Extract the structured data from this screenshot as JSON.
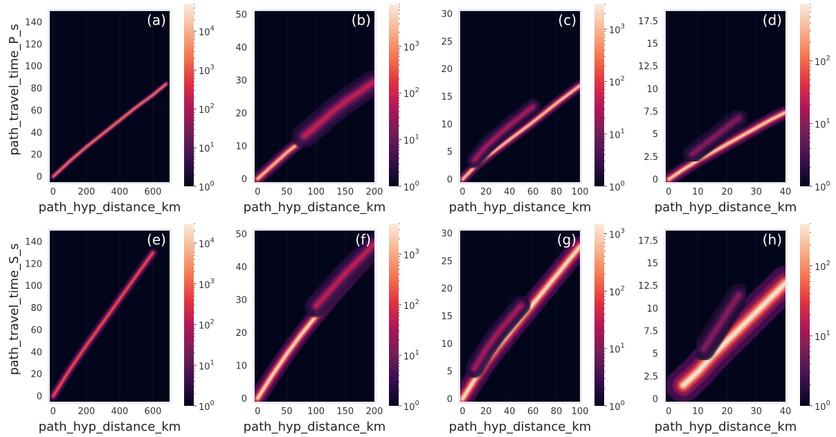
{
  "figure": {
    "colormap": [
      "#03051a",
      "#3b0f4f",
      "#701f57",
      "#ad1759",
      "#e13342",
      "#f37651",
      "#f6b48f",
      "#faebdd"
    ],
    "axes_background": "#eaeaf2",
    "grid": true
  },
  "chart_data": [
    {
      "id": "a",
      "panel_label": "(a)",
      "type": "heatmap",
      "xlabel": "path_hyp_distance_km",
      "ylabel": "path_travel_time_P_s",
      "x_ticks": [
        0,
        200,
        400,
        600
      ],
      "y_ticks": [
        0,
        20,
        40,
        60,
        80,
        100,
        120,
        140
      ],
      "xlim": [
        -20,
        700
      ],
      "ylim": [
        -5,
        150
      ],
      "colorbar": {
        "scale": "log",
        "range": [
          1,
          50000
        ],
        "ticks": [
          {
            "v": 1,
            "label": "10",
            "exp": "0"
          },
          {
            "v": 10,
            "label": "10",
            "exp": "1"
          },
          {
            "v": 100,
            "label": "10",
            "exp": "2"
          },
          {
            "v": 1000,
            "label": "10",
            "exp": "3"
          },
          {
            "v": 10000,
            "label": "10",
            "exp": "4"
          }
        ]
      },
      "bands": [
        {
          "x": [
            0,
            100,
            200,
            300,
            400,
            500,
            600,
            680
          ],
          "y": [
            0,
            14,
            27,
            39,
            51,
            63,
            74,
            84
          ],
          "width": 1.2,
          "intensity": 0.85
        }
      ]
    },
    {
      "id": "b",
      "panel_label": "(b)",
      "type": "heatmap",
      "xlabel": "path_hyp_distance_km",
      "ylabel": "",
      "x_ticks": [
        0,
        50,
        100,
        150,
        200
      ],
      "y_ticks": [
        0,
        10,
        20,
        30,
        40,
        50
      ],
      "xlim": [
        -5,
        200
      ],
      "ylim": [
        -1,
        51
      ],
      "colorbar": {
        "scale": "log",
        "range": [
          1,
          8000
        ],
        "ticks": [
          {
            "v": 1,
            "label": "10",
            "exp": "0"
          },
          {
            "v": 10,
            "label": "10",
            "exp": "1"
          },
          {
            "v": 100,
            "label": "10",
            "exp": "2"
          },
          {
            "v": 1000,
            "label": "10",
            "exp": "3"
          }
        ]
      },
      "bands": [
        {
          "x": [
            0,
            25,
            50,
            75,
            100,
            125,
            150,
            175,
            200
          ],
          "y": [
            0,
            4,
            8,
            11.5,
            15,
            18.5,
            21.5,
            24.5,
            27.5
          ],
          "width": 0.9,
          "intensity": 0.95
        },
        {
          "x": [
            80,
            100,
            125,
            150,
            175,
            200
          ],
          "y": [
            13,
            16,
            20,
            23.5,
            26.5,
            29.5
          ],
          "width": 1.8,
          "intensity": 0.5
        }
      ]
    },
    {
      "id": "c",
      "panel_label": "(c)",
      "type": "heatmap",
      "xlabel": "path_hyp_distance_km",
      "ylabel": "",
      "x_ticks": [
        0,
        20,
        40,
        60,
        80,
        100
      ],
      "y_ticks": [
        0,
        5,
        10,
        15,
        20,
        25,
        30
      ],
      "xlim": [
        -2,
        100
      ],
      "ylim": [
        -0.5,
        30.5
      ],
      "colorbar": {
        "scale": "log",
        "range": [
          1,
          3000
        ],
        "ticks": [
          {
            "v": 1,
            "label": "10",
            "exp": "0"
          },
          {
            "v": 10,
            "label": "10",
            "exp": "1"
          },
          {
            "v": 100,
            "label": "10",
            "exp": "2"
          },
          {
            "v": 1000,
            "label": "10",
            "exp": "3"
          }
        ]
      },
      "bands": [
        {
          "x": [
            0,
            10,
            20,
            30,
            40,
            50,
            60,
            70,
            80,
            90,
            100
          ],
          "y": [
            0,
            2.2,
            4,
            5.6,
            7.2,
            8.8,
            10.4,
            12.1,
            13.8,
            15.4,
            17
          ],
          "width": 0.45,
          "intensity": 1.0
        },
        {
          "x": [
            10,
            20,
            30,
            40,
            50,
            60
          ],
          "y": [
            3.5,
            6,
            8,
            9.8,
            11.5,
            13.2
          ],
          "width": 0.7,
          "intensity": 0.45
        }
      ]
    },
    {
      "id": "d",
      "panel_label": "(d)",
      "type": "heatmap",
      "xlabel": "path_hyp_distance_km",
      "ylabel": "",
      "x_ticks": [
        0,
        10,
        20,
        30,
        40
      ],
      "y_ticks": [
        0.0,
        2.5,
        5.0,
        7.5,
        10.0,
        12.5,
        15.0,
        17.5
      ],
      "xlim": [
        -1,
        40
      ],
      "ylim": [
        -0.3,
        18.6
      ],
      "colorbar": {
        "scale": "log",
        "range": [
          1,
          800
        ],
        "ticks": [
          {
            "v": 1,
            "label": "10",
            "exp": "0"
          },
          {
            "v": 10,
            "label": "10",
            "exp": "1"
          },
          {
            "v": 100,
            "label": "10",
            "exp": "2"
          }
        ]
      },
      "bands": [
        {
          "x": [
            0,
            5,
            10,
            15,
            20,
            25,
            30,
            35,
            40
          ],
          "y": [
            0,
            1.1,
            2.1,
            3,
            3.9,
            4.8,
            5.7,
            6.6,
            7.4
          ],
          "width": 0.35,
          "intensity": 1.0
        },
        {
          "x": [
            8,
            12,
            16,
            20,
            24
          ],
          "y": [
            2.8,
            3.8,
            4.8,
            5.8,
            6.8
          ],
          "width": 0.5,
          "intensity": 0.35
        }
      ]
    },
    {
      "id": "e",
      "panel_label": "(e)",
      "type": "heatmap",
      "xlabel": "path_hyp_distance_km",
      "ylabel": "path_travel_time_S_s",
      "x_ticks": [
        0,
        200,
        400,
        600
      ],
      "y_ticks": [
        0,
        20,
        40,
        60,
        80,
        100,
        120,
        140
      ],
      "xlim": [
        -20,
        700
      ],
      "ylim": [
        -5,
        150
      ],
      "colorbar": {
        "scale": "log",
        "range": [
          1,
          30000
        ],
        "ticks": [
          {
            "v": 1,
            "label": "10",
            "exp": "0"
          },
          {
            "v": 10,
            "label": "10",
            "exp": "1"
          },
          {
            "v": 100,
            "label": "10",
            "exp": "2"
          },
          {
            "v": 1000,
            "label": "10",
            "exp": "3"
          },
          {
            "v": 10000,
            "label": "10",
            "exp": "4"
          }
        ]
      },
      "bands": [
        {
          "x": [
            0,
            100,
            200,
            300,
            400,
            500,
            600
          ],
          "y": [
            0,
            24,
            46,
            67,
            88,
            109,
            130
          ],
          "width": 2.0,
          "intensity": 0.7
        }
      ]
    },
    {
      "id": "f",
      "panel_label": "(f)",
      "type": "heatmap",
      "xlabel": "path_hyp_distance_km",
      "ylabel": "",
      "x_ticks": [
        0,
        50,
        100,
        150,
        200
      ],
      "y_ticks": [
        0,
        10,
        20,
        30,
        40,
        50
      ],
      "xlim": [
        -5,
        200
      ],
      "ylim": [
        -1,
        51
      ],
      "colorbar": {
        "scale": "log",
        "range": [
          1,
          4000
        ],
        "ticks": [
          {
            "v": 1,
            "label": "10",
            "exp": "0"
          },
          {
            "v": 10,
            "label": "10",
            "exp": "1"
          },
          {
            "v": 100,
            "label": "10",
            "exp": "2"
          },
          {
            "v": 1000,
            "label": "10",
            "exp": "3"
          }
        ]
      },
      "bands": [
        {
          "x": [
            0,
            25,
            50,
            75,
            100,
            125,
            150,
            175,
            200
          ],
          "y": [
            0,
            7,
            13.5,
            19.5,
            25,
            30.5,
            35.5,
            40.5,
            45.5
          ],
          "width": 1.2,
          "intensity": 1.0
        },
        {
          "x": [
            100,
            125,
            150,
            175,
            200
          ],
          "y": [
            28,
            33,
            38,
            42.5,
            47
          ],
          "width": 1.6,
          "intensity": 0.5
        }
      ]
    },
    {
      "id": "g",
      "panel_label": "(g)",
      "type": "heatmap",
      "xlabel": "path_hyp_distance_km",
      "ylabel": "",
      "x_ticks": [
        0,
        20,
        40,
        60,
        80,
        100
      ],
      "y_ticks": [
        0,
        5,
        10,
        15,
        20,
        25,
        30
      ],
      "xlim": [
        -2,
        100
      ],
      "ylim": [
        -0.5,
        30.5
      ],
      "colorbar": {
        "scale": "log",
        "range": [
          1,
          1500
        ],
        "ticks": [
          {
            "v": 1,
            "label": "10",
            "exp": "0"
          },
          {
            "v": 10,
            "label": "10",
            "exp": "1"
          },
          {
            "v": 100,
            "label": "10",
            "exp": "2"
          },
          {
            "v": 1000,
            "label": "10",
            "exp": "3"
          }
        ]
      },
      "bands": [
        {
          "x": [
            0,
            10,
            20,
            30,
            40,
            50,
            60,
            70,
            80,
            90,
            100
          ],
          "y": [
            0,
            3.4,
            6.6,
            9.4,
            12,
            14.6,
            17.2,
            19.8,
            22.4,
            25,
            27.6
          ],
          "width": 0.9,
          "intensity": 1.0
        },
        {
          "x": [
            10,
            20,
            30,
            40,
            50
          ],
          "y": [
            5.5,
            9,
            12,
            14.5,
            17
          ],
          "width": 0.8,
          "intensity": 0.45
        }
      ]
    },
    {
      "id": "h",
      "panel_label": "(h)",
      "type": "heatmap",
      "xlabel": "path_hyp_distance_km",
      "ylabel": "",
      "x_ticks": [
        0,
        10,
        20,
        30,
        40
      ],
      "y_ticks": [
        0.0,
        2.5,
        5.0,
        7.5,
        10.0,
        12.5,
        15.0,
        17.5
      ],
      "xlim": [
        -1,
        40
      ],
      "ylim": [
        -0.3,
        18.6
      ],
      "colorbar": {
        "scale": "log",
        "range": [
          1,
          400
        ],
        "ticks": [
          {
            "v": 1,
            "label": "10",
            "exp": "0"
          },
          {
            "v": 10,
            "label": "10",
            "exp": "1"
          },
          {
            "v": 100,
            "label": "10",
            "exp": "2"
          }
        ]
      },
      "bands": [
        {
          "x": [
            5,
            10,
            15,
            20,
            25,
            30,
            35,
            40
          ],
          "y": [
            1.5,
            3,
            4.8,
            6.4,
            8,
            9.6,
            11.2,
            12.8
          ],
          "width": 0.9,
          "intensity": 1.0
        },
        {
          "x": [
            12,
            16,
            20,
            24
          ],
          "y": [
            5.5,
            7.5,
            9.5,
            11.5
          ],
          "width": 0.6,
          "intensity": 0.35
        }
      ]
    }
  ]
}
